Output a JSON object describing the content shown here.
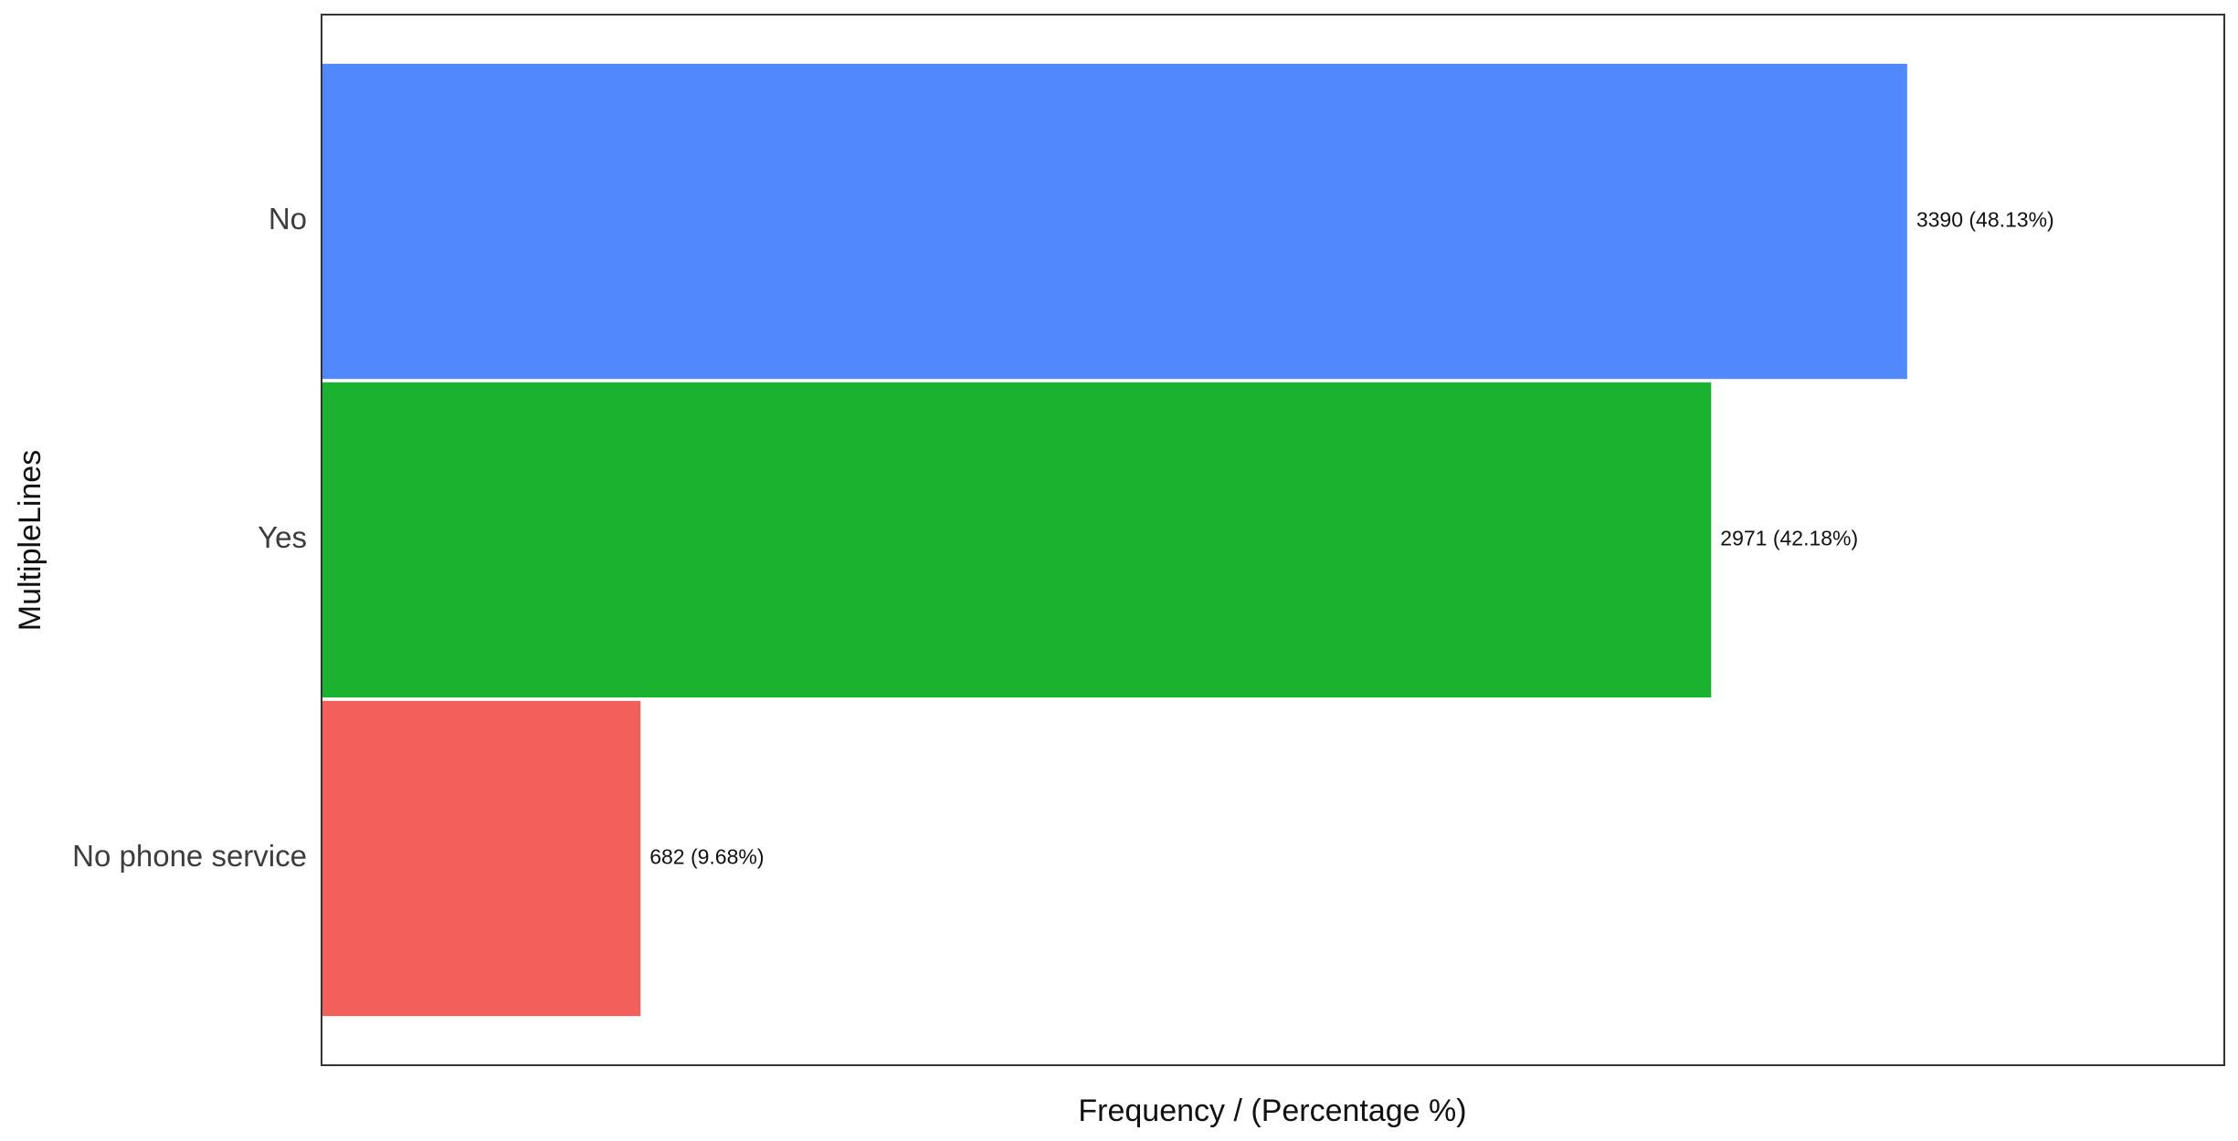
{
  "chart_data": {
    "type": "bar",
    "orientation": "horizontal",
    "categories": [
      "No",
      "Yes",
      "No phone service"
    ],
    "values": [
      3390,
      2971,
      682
    ],
    "percentages": [
      48.13,
      42.18,
      9.68
    ],
    "data_labels": [
      "3390 (48.13%)",
      "2971 (42.18%)",
      "682 (9.68%)"
    ],
    "colors": [
      "#5288fe",
      "#1ab22f",
      "#f3605c"
    ],
    "xlabel": "Frequency / (Percentage %)",
    "ylabel": "MultipleLines",
    "xlim": [
      0,
      4068
    ],
    "grid": false,
    "legend": "none"
  }
}
